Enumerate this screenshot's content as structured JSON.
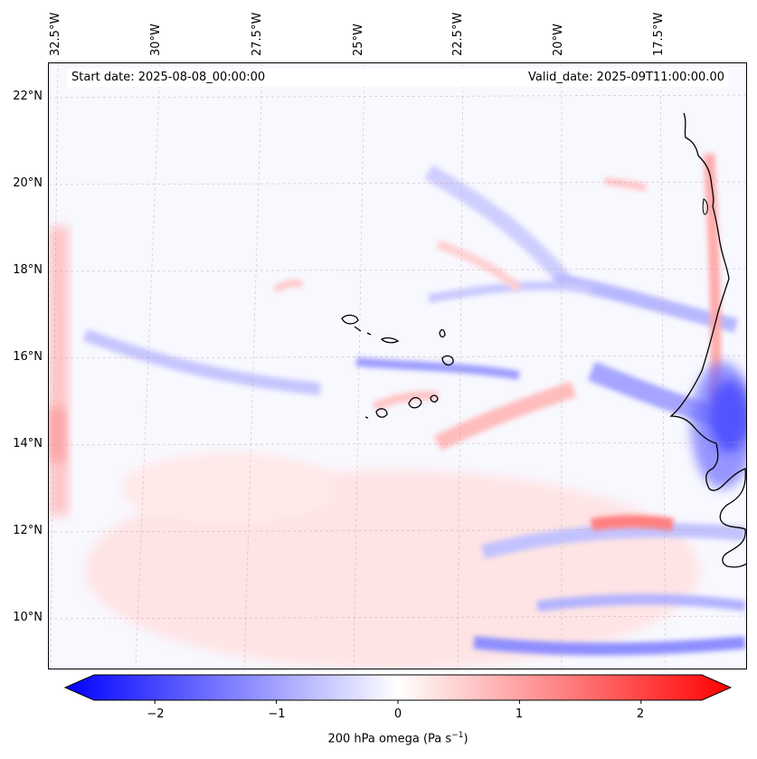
{
  "header": {
    "start_date": "Start date: 2025-08-08_00:00:00",
    "valid_date": "Valid_date: 2025-09T11:00:00.00"
  },
  "axes": {
    "latitudes": [
      "22°N",
      "20°N",
      "18°N",
      "16°N",
      "14°N",
      "12°N",
      "10°N"
    ],
    "longitudes": [
      "32.5°W",
      "30°W",
      "27.5°W",
      "25°W",
      "22.5°W",
      "20°W",
      "17.5°W"
    ]
  },
  "colorbar": {
    "ticks": [
      "−2",
      "−1",
      "0",
      "1",
      "2"
    ],
    "label_main": "200 hPa omega (Pa s",
    "label_sup": "−1",
    "label_end": ")",
    "range": [
      -2.5,
      2.5
    ],
    "colors": {
      "min": "#0000ff",
      "mid": "#ffffff",
      "max": "#ff0000"
    }
  }
}
